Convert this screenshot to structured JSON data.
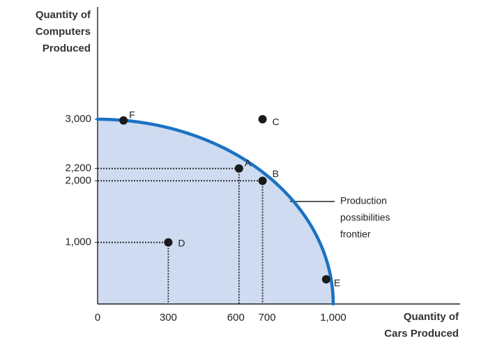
{
  "chart_data": {
    "type": "line",
    "x_axis_title": [
      "Quantity of",
      "Cars Produced"
    ],
    "y_axis_title": [
      "Quantity of",
      "Computers",
      "Produced"
    ],
    "xlim": [
      0,
      1000
    ],
    "ylim": [
      0,
      3000
    ],
    "x_ticks": [
      {
        "value": 0,
        "label": "0"
      },
      {
        "value": 300,
        "label": "300"
      },
      {
        "value": 600,
        "label": "600"
      },
      {
        "value": 700,
        "label": "700"
      },
      {
        "value": 1000,
        "label": "1,000"
      }
    ],
    "y_ticks": [
      {
        "value": 1000,
        "label": "1,000"
      },
      {
        "value": 2000,
        "label": "2,000"
      },
      {
        "value": 2200,
        "label": "2,200"
      },
      {
        "value": 3000,
        "label": "3,000"
      }
    ],
    "frontier": {
      "curve": "quarter-ellipse",
      "x_max": 1000,
      "y_max": 3000,
      "color": "#1a72c2",
      "fill_color": "#cfdbf0"
    },
    "points": [
      {
        "label": "F",
        "x": 110,
        "y": 2980
      },
      {
        "label": "C",
        "x": 700,
        "y": 3000
      },
      {
        "label": "A",
        "x": 600,
        "y": 2200
      },
      {
        "label": "B",
        "x": 700,
        "y": 2000
      },
      {
        "label": "D",
        "x": 300,
        "y": 1000
      },
      {
        "label": "E",
        "x": 970,
        "y": 400
      }
    ],
    "guide_points": [
      "A",
      "B",
      "D"
    ],
    "annotation": {
      "lines": [
        "Production",
        "possibilities",
        "frontier"
      ]
    },
    "grid": false,
    "point_color": "#1a1a1a"
  }
}
